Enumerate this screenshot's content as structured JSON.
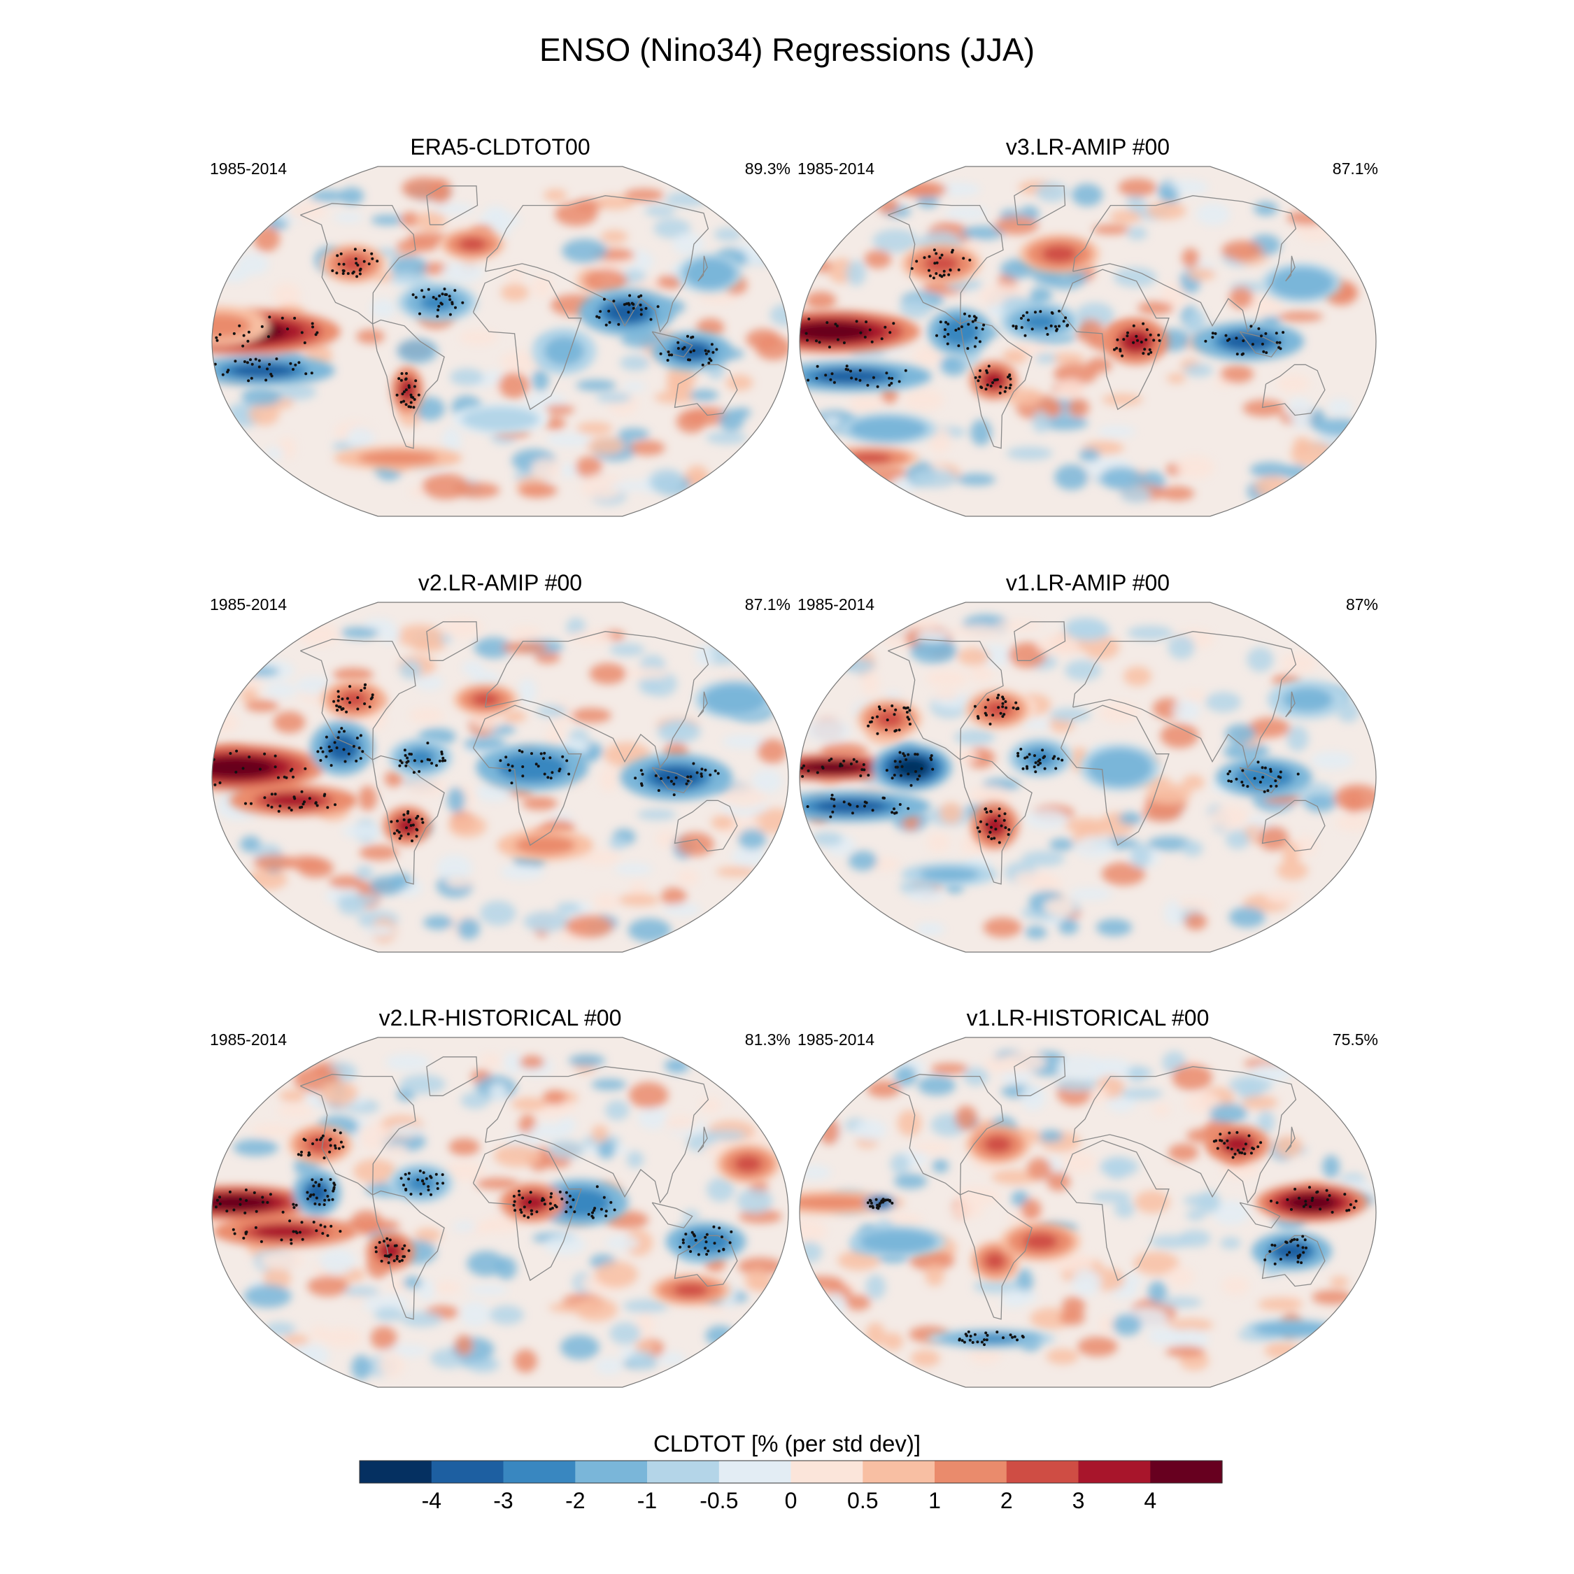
{
  "figure": {
    "title": "ENSO (Nino34) Regressions (JJA)"
  },
  "chart_data": {
    "type": "heatmap",
    "title": "ENSO (Nino34) Regressions (JJA)",
    "projection": "Robinson (global)",
    "panels": [
      {
        "title": "ERA5-CLDTOT00",
        "period": "1985-2014",
        "pattern_corr": "89.3%",
        "features": [
          {
            "lon": -160,
            "lat": 5,
            "rx": 60,
            "ry": 12,
            "v": 4.5
          },
          {
            "lon": -175,
            "lat": 8,
            "rx": 30,
            "ry": 10,
            "v": 1.5
          },
          {
            "lon": -150,
            "lat": -15,
            "rx": 45,
            "ry": 8,
            "v": -3.5
          },
          {
            "lon": 120,
            "lat": -5,
            "rx": 25,
            "ry": 10,
            "v": -3.5
          },
          {
            "lon": 80,
            "lat": 15,
            "rx": 30,
            "ry": 12,
            "v": -3.5
          },
          {
            "lon": -60,
            "lat": -25,
            "rx": 10,
            "ry": 12,
            "v": 3.5
          },
          {
            "lon": -100,
            "lat": 40,
            "rx": 20,
            "ry": 10,
            "v": 2.5
          },
          {
            "lon": -40,
            "lat": 20,
            "rx": 25,
            "ry": 10,
            "v": -2.5
          },
          {
            "lon": 40,
            "lat": -5,
            "rx": 20,
            "ry": 12,
            "v": -1.5
          },
          {
            "lon": -20,
            "lat": 50,
            "rx": 20,
            "ry": 8,
            "v": 2.0
          },
          {
            "lon": 140,
            "lat": 35,
            "rx": 20,
            "ry": 10,
            "v": -2.0
          },
          {
            "lon": 0,
            "lat": -40,
            "rx": 30,
            "ry": 8,
            "v": -1.0
          },
          {
            "lon": -80,
            "lat": -60,
            "rx": 40,
            "ry": 6,
            "v": 1.5
          }
        ]
      },
      {
        "title": "v3.LR-AMIP  #00",
        "period": "1985-2014",
        "pattern_corr": "87.1%",
        "features": [
          {
            "lon": -160,
            "lat": 5,
            "rx": 55,
            "ry": 11,
            "v": 4.5
          },
          {
            "lon": -150,
            "lat": -18,
            "rx": 50,
            "ry": 8,
            "v": -3.5
          },
          {
            "lon": 100,
            "lat": 0,
            "rx": 35,
            "ry": 10,
            "v": -3.5
          },
          {
            "lon": -80,
            "lat": 5,
            "rx": 20,
            "ry": 12,
            "v": -3.0
          },
          {
            "lon": -60,
            "lat": -20,
            "rx": 15,
            "ry": 10,
            "v": 3.0
          },
          {
            "lon": -100,
            "lat": 40,
            "rx": 25,
            "ry": 10,
            "v": 2.5
          },
          {
            "lon": -30,
            "lat": 10,
            "rx": 25,
            "ry": 10,
            "v": -2.5
          },
          {
            "lon": 30,
            "lat": 0,
            "rx": 20,
            "ry": 12,
            "v": 3.0
          },
          {
            "lon": -20,
            "lat": 45,
            "rx": 25,
            "ry": 10,
            "v": 2.0
          },
          {
            "lon": 140,
            "lat": 30,
            "rx": 25,
            "ry": 10,
            "v": -2.0
          },
          {
            "lon": -140,
            "lat": -45,
            "rx": 30,
            "ry": 8,
            "v": -2.0
          },
          {
            "lon": -170,
            "lat": -60,
            "rx": 30,
            "ry": 6,
            "v": 2.0
          }
        ]
      },
      {
        "title": "v2.LR-AMIP  #00",
        "period": "1985-2014",
        "pattern_corr": "87.1%",
        "features": [
          {
            "lon": -165,
            "lat": 5,
            "rx": 55,
            "ry": 12,
            "v": 4.5
          },
          {
            "lon": -130,
            "lat": -12,
            "rx": 40,
            "ry": 8,
            "v": 3.5
          },
          {
            "lon": -100,
            "lat": 15,
            "rx": 20,
            "ry": 14,
            "v": -3.5
          },
          {
            "lon": 110,
            "lat": 0,
            "rx": 35,
            "ry": 12,
            "v": -3.5
          },
          {
            "lon": 20,
            "lat": 5,
            "rx": 35,
            "ry": 12,
            "v": -3.0
          },
          {
            "lon": -60,
            "lat": -25,
            "rx": 15,
            "ry": 10,
            "v": 3.5
          },
          {
            "lon": -50,
            "lat": 10,
            "rx": 20,
            "ry": 10,
            "v": -2.5
          },
          {
            "lon": -100,
            "lat": 40,
            "rx": 20,
            "ry": 10,
            "v": 2.5
          },
          {
            "lon": 160,
            "lat": 40,
            "rx": 25,
            "ry": 10,
            "v": -2.0
          },
          {
            "lon": -10,
            "lat": 40,
            "rx": 20,
            "ry": 8,
            "v": 2.0
          },
          {
            "lon": 30,
            "lat": -35,
            "rx": 30,
            "ry": 8,
            "v": 1.5
          }
        ]
      },
      {
        "title": "v1.LR-AMIP  #00",
        "period": "1985-2014",
        "pattern_corr": "87%",
        "features": [
          {
            "lon": -160,
            "lat": 5,
            "rx": 45,
            "ry": 7,
            "v": 4.5
          },
          {
            "lon": -110,
            "lat": 5,
            "rx": 25,
            "ry": 12,
            "v": -4.5
          },
          {
            "lon": -150,
            "lat": -15,
            "rx": 50,
            "ry": 8,
            "v": -3.5
          },
          {
            "lon": -60,
            "lat": -25,
            "rx": 15,
            "ry": 12,
            "v": 3.5
          },
          {
            "lon": 110,
            "lat": 0,
            "rx": 30,
            "ry": 10,
            "v": -3.0
          },
          {
            "lon": -130,
            "lat": 30,
            "rx": 20,
            "ry": 10,
            "v": 2.5
          },
          {
            "lon": -60,
            "lat": 35,
            "rx": 20,
            "ry": 10,
            "v": 2.5
          },
          {
            "lon": -30,
            "lat": 10,
            "rx": 20,
            "ry": 10,
            "v": -2.5
          },
          {
            "lon": 20,
            "lat": 5,
            "rx": 25,
            "ry": 12,
            "v": -2.0
          },
          {
            "lon": 150,
            "lat": 40,
            "rx": 25,
            "ry": 10,
            "v": -1.5
          },
          {
            "lon": -100,
            "lat": -50,
            "rx": 30,
            "ry": 6,
            "v": -1.5
          }
        ]
      },
      {
        "title": "v2.LR-HISTORICAL  #00",
        "period": "1985-2014",
        "pattern_corr": "81.3%",
        "features": [
          {
            "lon": -165,
            "lat": 5,
            "rx": 50,
            "ry": 9,
            "v": 4.5
          },
          {
            "lon": -135,
            "lat": -10,
            "rx": 45,
            "ry": 8,
            "v": 3.5
          },
          {
            "lon": -115,
            "lat": 10,
            "rx": 15,
            "ry": 12,
            "v": -3.5
          },
          {
            "lon": 130,
            "lat": -15,
            "rx": 25,
            "ry": 10,
            "v": -3.0
          },
          {
            "lon": 50,
            "lat": 5,
            "rx": 30,
            "ry": 12,
            "v": -3.0
          },
          {
            "lon": -50,
            "lat": 15,
            "rx": 20,
            "ry": 10,
            "v": -2.5
          },
          {
            "lon": -70,
            "lat": -20,
            "rx": 15,
            "ry": 10,
            "v": 3.0
          },
          {
            "lon": 20,
            "lat": 5,
            "rx": 20,
            "ry": 10,
            "v": 3.0
          },
          {
            "lon": -120,
            "lat": 35,
            "rx": 20,
            "ry": 10,
            "v": 2.5
          },
          {
            "lon": 160,
            "lat": 25,
            "rx": 20,
            "ry": 10,
            "v": 2.0
          },
          {
            "lon": 130,
            "lat": -40,
            "rx": 25,
            "ry": 8,
            "v": 2.0
          }
        ]
      },
      {
        "title": "v1.LR-HISTORICAL  #00",
        "period": "1985-2014",
        "pattern_corr": "75.5%",
        "features": [
          {
            "lon": 140,
            "lat": 5,
            "rx": 35,
            "ry": 10,
            "v": 4.0
          },
          {
            "lon": -160,
            "lat": 5,
            "rx": 45,
            "ry": 6,
            "v": 1.5
          },
          {
            "lon": -130,
            "lat": 5,
            "rx": 10,
            "ry": 4,
            "v": -4.0
          },
          {
            "lon": 130,
            "lat": -20,
            "rx": 25,
            "ry": 10,
            "v": -3.5
          },
          {
            "lon": -60,
            "lat": -25,
            "rx": 15,
            "ry": 10,
            "v": 2.0
          },
          {
            "lon": -120,
            "lat": -15,
            "rx": 30,
            "ry": 8,
            "v": -2.0
          },
          {
            "lon": -30,
            "lat": -15,
            "rx": 25,
            "ry": 10,
            "v": 2.0
          },
          {
            "lon": 100,
            "lat": 35,
            "rx": 20,
            "ry": 10,
            "v": 3.0
          },
          {
            "lon": -60,
            "lat": 35,
            "rx": 20,
            "ry": 10,
            "v": 2.0
          },
          {
            "lon": -80,
            "lat": -65,
            "rx": 40,
            "ry": 5,
            "v": -2.5
          },
          {
            "lon": 160,
            "lat": -60,
            "rx": 30,
            "ry": 5,
            "v": -2.0
          }
        ]
      }
    ],
    "colorbar": {
      "title": "CLDTOT [% (per std dev)]",
      "tick_labels": [
        "-4",
        "-3",
        "-2",
        "-1",
        "-0.5",
        "0",
        "0.5",
        "1",
        "2",
        "3",
        "4"
      ],
      "levels": [
        -4,
        -3,
        -2,
        -1,
        -0.5,
        0,
        0.5,
        1,
        2,
        3,
        4
      ],
      "colors": [
        "#053061",
        "#1d5fa1",
        "#3987c0",
        "#7ab6d9",
        "#b4d5e8",
        "#e3edf4",
        "#fbe5da",
        "#f8bfa3",
        "#ea8b6c",
        "#cf4d44",
        "#a8152b",
        "#67001f"
      ]
    }
  },
  "colors": {
    "coast": "#8a8a8a",
    "outline": "#777777"
  }
}
